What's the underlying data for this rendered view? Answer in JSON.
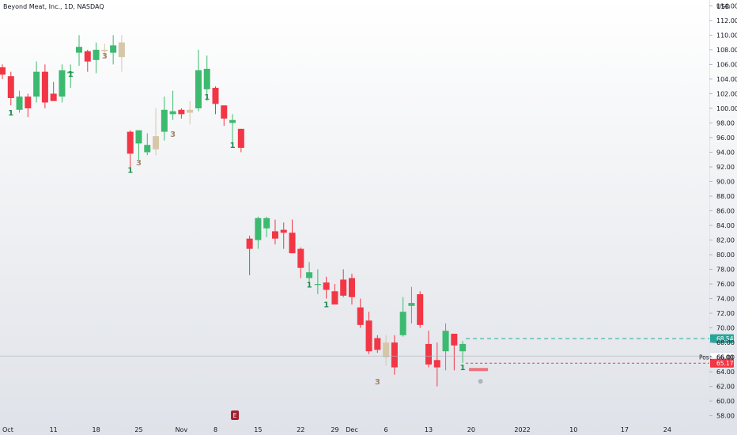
{
  "chart_data": {
    "type": "candlestick",
    "title": "Beyond Meat, Inc., 1D, NASDAQ",
    "currency": "USD",
    "y_range": [
      57.2,
      114.8
    ],
    "y_ticks": [
      58,
      60,
      62,
      64,
      66,
      68,
      70,
      72,
      74,
      76,
      78,
      80,
      82,
      84,
      86,
      88,
      90,
      92,
      94,
      96,
      98,
      100,
      102,
      104,
      106,
      108,
      110,
      112,
      114
    ],
    "x_labels": [
      {
        "i": 0,
        "label": "Oct"
      },
      {
        "i": 6,
        "label": "11"
      },
      {
        "i": 11,
        "label": "18"
      },
      {
        "i": 16,
        "label": "25"
      },
      {
        "i": 21,
        "label": "Nov"
      },
      {
        "i": 25,
        "label": "8"
      },
      {
        "i": 30,
        "label": "15"
      },
      {
        "i": 35,
        "label": "22"
      },
      {
        "i": 39,
        "label": "29"
      },
      {
        "i": 41,
        "label": "Dec"
      },
      {
        "i": 45,
        "label": "6"
      },
      {
        "i": 50,
        "label": "13"
      },
      {
        "i": 55,
        "label": "20"
      },
      {
        "i": 61,
        "label": "2022"
      },
      {
        "i": 67,
        "label": "10"
      },
      {
        "i": 73,
        "label": "17"
      },
      {
        "i": 78,
        "label": "24"
      }
    ],
    "candles": [
      {
        "o": 105.6,
        "h": 106.0,
        "l": 104.0,
        "c": 104.6,
        "color": "red"
      },
      {
        "o": 104.4,
        "h": 105.0,
        "l": 100.4,
        "c": 101.4,
        "color": "red"
      },
      {
        "o": 99.8,
        "h": 102.4,
        "l": 99.4,
        "c": 101.6,
        "color": "green"
      },
      {
        "o": 101.6,
        "h": 102.0,
        "l": 98.8,
        "c": 100.0,
        "color": "red"
      },
      {
        "o": 101.6,
        "h": 106.4,
        "l": 100.8,
        "c": 105.0,
        "color": "green"
      },
      {
        "o": 105.0,
        "h": 106.0,
        "l": 100.0,
        "c": 100.8,
        "color": "red"
      },
      {
        "o": 102.0,
        "h": 103.6,
        "l": 101.2,
        "c": 101.0,
        "color": "red"
      },
      {
        "o": 101.6,
        "h": 106.0,
        "l": 100.8,
        "c": 105.2,
        "color": "green"
      },
      {
        "o": 104.8,
        "h": 106.0,
        "l": 102.8,
        "c": 105.0,
        "color": "green"
      },
      {
        "o": 107.6,
        "h": 110.0,
        "l": 105.8,
        "c": 108.4,
        "color": "green"
      },
      {
        "o": 107.8,
        "h": 108.0,
        "l": 105.0,
        "c": 106.4,
        "color": "red"
      },
      {
        "o": 106.6,
        "h": 109.0,
        "l": 104.8,
        "c": 108.0,
        "color": "green"
      },
      {
        "o": 107.8,
        "h": 108.8,
        "l": 106.8,
        "c": 108.0,
        "color": "beige"
      },
      {
        "o": 107.6,
        "h": 110.0,
        "l": 106.0,
        "c": 108.6,
        "color": "green"
      },
      {
        "o": 107.0,
        "h": 110.0,
        "l": 105.0,
        "c": 109.0,
        "color": "beige"
      },
      {
        "o": 93.8,
        "h": 97.0,
        "l": 91.6,
        "c": 96.8,
        "color": "red"
      },
      {
        "o": 95.2,
        "h": 97.0,
        "l": 93.0,
        "c": 97.0,
        "color": "green"
      },
      {
        "o": 95.0,
        "h": 96.6,
        "l": 93.6,
        "c": 94.0,
        "color": "green"
      },
      {
        "o": 94.4,
        "h": 100.0,
        "l": 93.6,
        "c": 96.2,
        "color": "beige"
      },
      {
        "o": 96.8,
        "h": 101.6,
        "l": 95.6,
        "c": 99.8,
        "color": "green"
      },
      {
        "o": 99.6,
        "h": 102.4,
        "l": 98.4,
        "c": 99.2,
        "color": "green"
      },
      {
        "o": 99.2,
        "h": 100.0,
        "l": 98.6,
        "c": 99.8,
        "color": "red"
      },
      {
        "o": 99.8,
        "h": 101.0,
        "l": 97.8,
        "c": 99.4,
        "color": "beige"
      },
      {
        "o": 100.0,
        "h": 108.0,
        "l": 99.6,
        "c": 105.2,
        "color": "green"
      },
      {
        "o": 102.6,
        "h": 107.2,
        "l": 101.0,
        "c": 105.4,
        "color": "green"
      },
      {
        "o": 102.8,
        "h": 103.0,
        "l": 99.2,
        "c": 100.6,
        "color": "red"
      },
      {
        "o": 100.4,
        "h": 100.4,
        "l": 97.6,
        "c": 98.6,
        "color": "red"
      },
      {
        "o": 98.4,
        "h": 99.2,
        "l": 95.2,
        "c": 98.0,
        "color": "green"
      },
      {
        "o": 97.2,
        "h": 97.2,
        "l": 94.0,
        "c": 94.6,
        "color": "red"
      },
      {
        "o": 82.2,
        "h": 82.6,
        "l": 77.2,
        "c": 80.8,
        "color": "red"
      },
      {
        "o": 82.0,
        "h": 85.2,
        "l": 80.8,
        "c": 85.0,
        "color": "green"
      },
      {
        "o": 85.0,
        "h": 85.2,
        "l": 82.4,
        "c": 83.6,
        "color": "green"
      },
      {
        "o": 82.2,
        "h": 84.8,
        "l": 81.4,
        "c": 83.2,
        "color": "red"
      },
      {
        "o": 83.4,
        "h": 84.4,
        "l": 80.8,
        "c": 83.0,
        "color": "red"
      },
      {
        "o": 83.0,
        "h": 84.8,
        "l": 80.6,
        "c": 80.2,
        "color": "red"
      },
      {
        "o": 80.8,
        "h": 81.0,
        "l": 76.8,
        "c": 78.2,
        "color": "red"
      },
      {
        "o": 77.6,
        "h": 79.0,
        "l": 75.6,
        "c": 76.8,
        "color": "green"
      },
      {
        "o": 76.0,
        "h": 78.0,
        "l": 74.6,
        "c": 76.0,
        "color": "green"
      },
      {
        "o": 76.2,
        "h": 77.0,
        "l": 74.0,
        "c": 75.2,
        "color": "red"
      },
      {
        "o": 75.0,
        "h": 76.0,
        "l": 73.4,
        "c": 73.2,
        "color": "red"
      },
      {
        "o": 74.4,
        "h": 78.0,
        "l": 74.2,
        "c": 76.6,
        "color": "red"
      },
      {
        "o": 76.8,
        "h": 77.4,
        "l": 73.2,
        "c": 74.2,
        "color": "red"
      },
      {
        "o": 72.8,
        "h": 74.0,
        "l": 70.0,
        "c": 70.4,
        "color": "red"
      },
      {
        "o": 71.0,
        "h": 72.2,
        "l": 66.4,
        "c": 66.8,
        "color": "red"
      },
      {
        "o": 67.0,
        "h": 69.0,
        "l": 66.6,
        "c": 68.6,
        "color": "red"
      },
      {
        "o": 68.0,
        "h": 69.0,
        "l": 64.8,
        "c": 66.0,
        "color": "beige"
      },
      {
        "o": 68.0,
        "h": 69.0,
        "l": 63.6,
        "c": 64.6,
        "color": "red"
      },
      {
        "o": 69.0,
        "h": 74.2,
        "l": 68.8,
        "c": 72.2,
        "color": "green"
      },
      {
        "o": 73.0,
        "h": 75.6,
        "l": 70.6,
        "c": 73.4,
        "color": "green"
      },
      {
        "o": 74.6,
        "h": 75.0,
        "l": 70.0,
        "c": 70.4,
        "color": "red"
      },
      {
        "o": 67.8,
        "h": 69.6,
        "l": 64.6,
        "c": 65.0,
        "color": "red"
      },
      {
        "o": 65.6,
        "h": 68.0,
        "l": 62.0,
        "c": 64.6,
        "color": "red"
      },
      {
        "o": 66.8,
        "h": 70.6,
        "l": 64.2,
        "c": 69.6,
        "color": "green"
      },
      {
        "o": 69.2,
        "h": 69.2,
        "l": 64.2,
        "c": 67.6,
        "color": "red"
      },
      {
        "o": 66.8,
        "h": 68.2,
        "l": 65.2,
        "c": 67.8,
        "color": "green"
      }
    ],
    "counters": [
      {
        "i": 1,
        "price": 99.0,
        "text": "1",
        "color": "green"
      },
      {
        "i": 8,
        "price": 104.3,
        "text": "1",
        "color": "green"
      },
      {
        "i": 12,
        "price": 106.8,
        "text": "3",
        "color": "beige"
      },
      {
        "i": 15,
        "price": 91.2,
        "text": "1",
        "color": "green"
      },
      {
        "i": 16,
        "price": 92.2,
        "text": "3",
        "color": "beige"
      },
      {
        "i": 20,
        "price": 96.1,
        "text": "3",
        "color": "beige"
      },
      {
        "i": 24,
        "price": 101.2,
        "text": "1",
        "color": "green"
      },
      {
        "i": 27,
        "price": 94.6,
        "text": "1",
        "color": "green"
      },
      {
        "i": 36,
        "price": 75.5,
        "text": "1",
        "color": "green"
      },
      {
        "i": 38,
        "price": 72.8,
        "text": "1",
        "color": "green"
      },
      {
        "i": 44,
        "price": 62.3,
        "text": "3",
        "color": "beige"
      },
      {
        "i": 54,
        "price": 64.2,
        "text": "1",
        "color": "green"
      }
    ],
    "price_tags": [
      {
        "label": "68.54",
        "value": 68.54,
        "color": "#26a69a",
        "text_color": "#ffffff",
        "line": "dashed"
      },
      {
        "label": "66.15",
        "value": 66.15,
        "color": "#e0e3eb",
        "text_color": "#787b86",
        "line": "solid-faint"
      },
      {
        "label": "66.00",
        "value": 66.0,
        "color": "#ffffff",
        "text_color": "#131722",
        "line": "none"
      },
      {
        "label": "65.17",
        "value": 65.17,
        "color": "#f23645",
        "text_color": "#ffffff",
        "line": "dashed-red"
      }
    ],
    "annotations": {
      "post_label": "Post",
      "earnings_badge": "E"
    },
    "colors": {
      "up": "#26a69a",
      "up_body": "#3cba6f",
      "down": "#f23645",
      "beige": "#d6c7a8",
      "counter_green": "#1e8c4e",
      "counter_beige": "#a0876a"
    },
    "grid": false,
    "legend": "none"
  }
}
